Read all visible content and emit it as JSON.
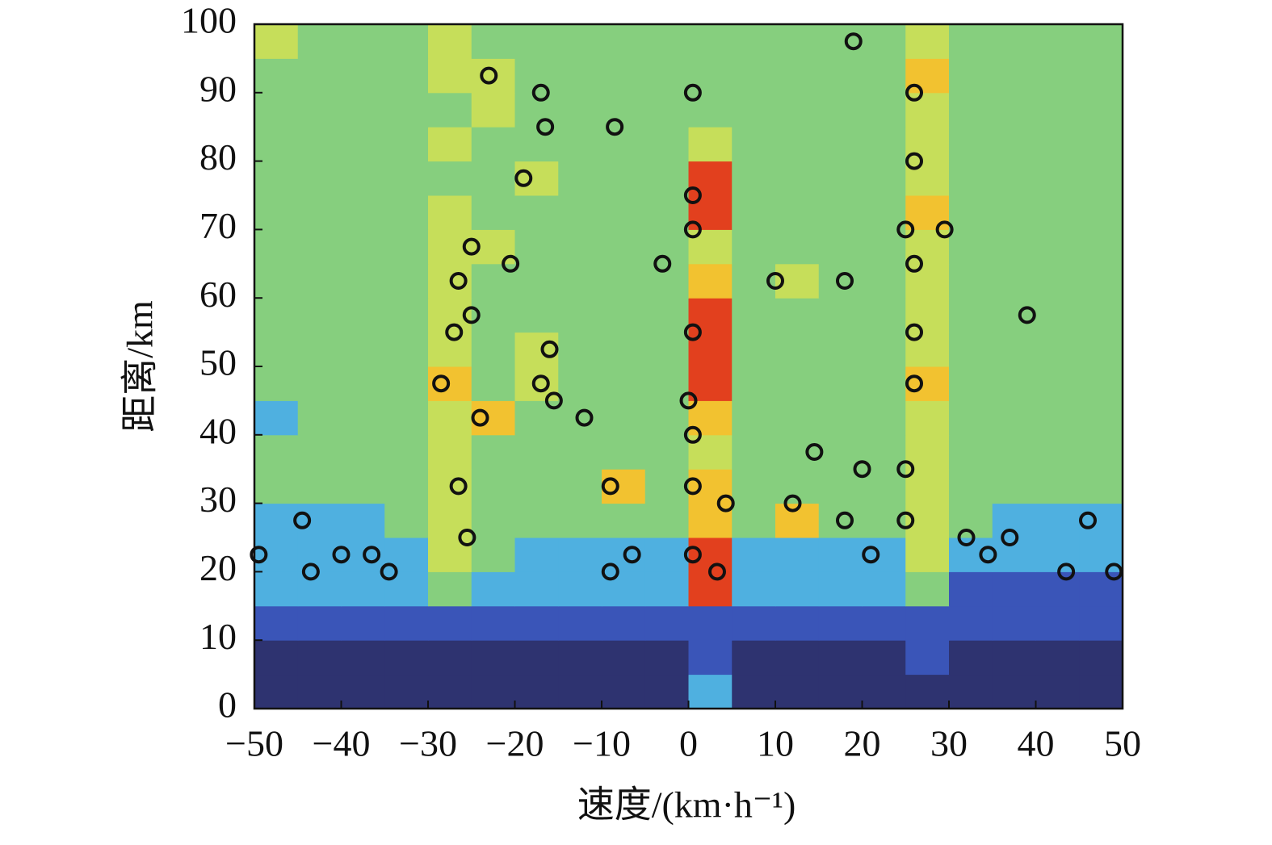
{
  "chart_data": {
    "type": "heatmap-scatter",
    "xlabel": "速度/(km·h⁻¹)",
    "ylabel": "距离/km",
    "xlim": [
      -50,
      50
    ],
    "ylim": [
      0,
      100
    ],
    "xticks": [
      {
        "value": -50,
        "label": "−50"
      },
      {
        "value": -40,
        "label": "−40"
      },
      {
        "value": -30,
        "label": "−30"
      },
      {
        "value": -20,
        "label": "−20"
      },
      {
        "value": -10,
        "label": "−10"
      },
      0,
      10,
      20,
      30,
      40,
      50
    ],
    "yticks": [
      0,
      10,
      20,
      30,
      40,
      50,
      60,
      70,
      80,
      90,
      100
    ],
    "xbins": [
      -50,
      -45,
      -40,
      -35,
      -30,
      -25,
      -20,
      -15,
      -10,
      -5,
      0,
      5,
      10,
      15,
      20,
      25,
      30,
      35,
      40,
      45,
      50
    ],
    "ybins": [
      0,
      5,
      10,
      15,
      20,
      25,
      30,
      35,
      40,
      45,
      50,
      55,
      60,
      65,
      70,
      75,
      80,
      85,
      90,
      95,
      100
    ],
    "colormap": [
      "#2e3370",
      "#3a55b8",
      "#4fb0e0",
      "#86cf7e",
      "#c6de5a",
      "#f2c230",
      "#e2401e"
    ],
    "z": [
      [
        1,
        1,
        1,
        1,
        1,
        1,
        1,
        1,
        1,
        1,
        3,
        1,
        1,
        1,
        1,
        1,
        1,
        1,
        1,
        1
      ],
      [
        1,
        1,
        1,
        1,
        1,
        1,
        1,
        1,
        1,
        1,
        2,
        1,
        1,
        1,
        1,
        2,
        1,
        1,
        1,
        1
      ],
      [
        2,
        2,
        2,
        2,
        2,
        2,
        2,
        2,
        2,
        2,
        2,
        2,
        2,
        2,
        2,
        2,
        2,
        2,
        2,
        2
      ],
      [
        3,
        3,
        3,
        3,
        4,
        3,
        3,
        3,
        3,
        3,
        7,
        3,
        3,
        3,
        3,
        4,
        2,
        2,
        2,
        2
      ],
      [
        3,
        3,
        3,
        3,
        5,
        4,
        3,
        3,
        3,
        3,
        7,
        3,
        3,
        3,
        3,
        5,
        3,
        3,
        3,
        3
      ],
      [
        3,
        3,
        3,
        4,
        5,
        4,
        4,
        4,
        4,
        4,
        6,
        4,
        6,
        4,
        4,
        5,
        4,
        3,
        3,
        3
      ],
      [
        4,
        4,
        4,
        4,
        5,
        4,
        4,
        4,
        6,
        4,
        6,
        4,
        4,
        4,
        4,
        5,
        4,
        4,
        4,
        4
      ],
      [
        4,
        4,
        4,
        4,
        5,
        4,
        4,
        4,
        4,
        4,
        5,
        4,
        4,
        4,
        4,
        5,
        4,
        4,
        4,
        4
      ],
      [
        3,
        4,
        4,
        4,
        5,
        6,
        4,
        4,
        4,
        4,
        6,
        4,
        4,
        4,
        4,
        5,
        4,
        4,
        4,
        4
      ],
      [
        4,
        4,
        4,
        4,
        6,
        4,
        5,
        4,
        4,
        4,
        7,
        4,
        4,
        4,
        4,
        6,
        4,
        4,
        4,
        4
      ],
      [
        4,
        4,
        4,
        4,
        5,
        4,
        5,
        4,
        4,
        4,
        7,
        4,
        4,
        4,
        4,
        5,
        4,
        4,
        4,
        4
      ],
      [
        4,
        4,
        4,
        4,
        5,
        4,
        4,
        4,
        4,
        4,
        7,
        4,
        4,
        4,
        4,
        5,
        4,
        4,
        4,
        4
      ],
      [
        4,
        4,
        4,
        4,
        5,
        4,
        4,
        4,
        4,
        4,
        6,
        4,
        5,
        4,
        4,
        5,
        4,
        4,
        4,
        4
      ],
      [
        4,
        4,
        4,
        4,
        5,
        5,
        4,
        4,
        4,
        4,
        5,
        4,
        4,
        4,
        4,
        5,
        4,
        4,
        4,
        4
      ],
      [
        4,
        4,
        4,
        4,
        5,
        4,
        4,
        4,
        4,
        4,
        7,
        4,
        4,
        4,
        4,
        6,
        4,
        4,
        4,
        4
      ],
      [
        4,
        4,
        4,
        4,
        4,
        4,
        5,
        4,
        4,
        4,
        7,
        4,
        4,
        4,
        4,
        5,
        4,
        4,
        4,
        4
      ],
      [
        4,
        4,
        4,
        4,
        5,
        4,
        4,
        4,
        4,
        4,
        5,
        4,
        4,
        4,
        4,
        5,
        4,
        4,
        4,
        4
      ],
      [
        4,
        4,
        4,
        4,
        4,
        5,
        4,
        4,
        4,
        4,
        4,
        4,
        4,
        4,
        4,
        5,
        4,
        4,
        4,
        4
      ],
      [
        4,
        4,
        4,
        4,
        5,
        5,
        4,
        4,
        4,
        4,
        4,
        4,
        4,
        4,
        4,
        6,
        4,
        4,
        4,
        4
      ],
      [
        5,
        4,
        4,
        4,
        5,
        4,
        4,
        4,
        4,
        4,
        4,
        4,
        4,
        4,
        4,
        5,
        4,
        4,
        4,
        4
      ]
    ],
    "points": {
      "color": "#111111",
      "x": [
        -49.5,
        -43.5,
        -44.5,
        -40,
        -36.5,
        -34.5,
        -26.5,
        -25.5,
        -28.5,
        -24,
        -27,
        -25,
        -26.5,
        -25,
        -23,
        -20.5,
        -19,
        -17,
        -16.5,
        -17,
        -15.5,
        -16,
        -12,
        -8.5,
        -9,
        -9,
        -6.5,
        -3,
        0.5,
        0.5,
        0.5,
        0.5,
        0,
        0.5,
        0.5,
        0.5,
        3.3,
        4.3,
        10,
        12,
        14.5,
        18,
        18,
        19,
        20,
        21,
        25,
        26,
        26,
        26,
        26,
        26,
        25,
        25,
        29.5,
        32,
        34.5,
        37,
        39,
        43.5,
        46,
        49
      ],
      "y": [
        22.5,
        20,
        27.5,
        22.5,
        22.5,
        20,
        32.5,
        25,
        47.5,
        42.5,
        55,
        57.5,
        62.5,
        67.5,
        92.5,
        65,
        77.5,
        90,
        85,
        47.5,
        45,
        52.5,
        42.5,
        85,
        32.5,
        20,
        22.5,
        65,
        90,
        75,
        70,
        55,
        45,
        40,
        32.5,
        22.5,
        20,
        30,
        62.5,
        30,
        37.5,
        62.5,
        27.5,
        97.5,
        35,
        22.5,
        70,
        65,
        55,
        47.5,
        80,
        90,
        35,
        27.5,
        70,
        25,
        22.5,
        25,
        57.5,
        20,
        27.5,
        20
      ]
    }
  }
}
